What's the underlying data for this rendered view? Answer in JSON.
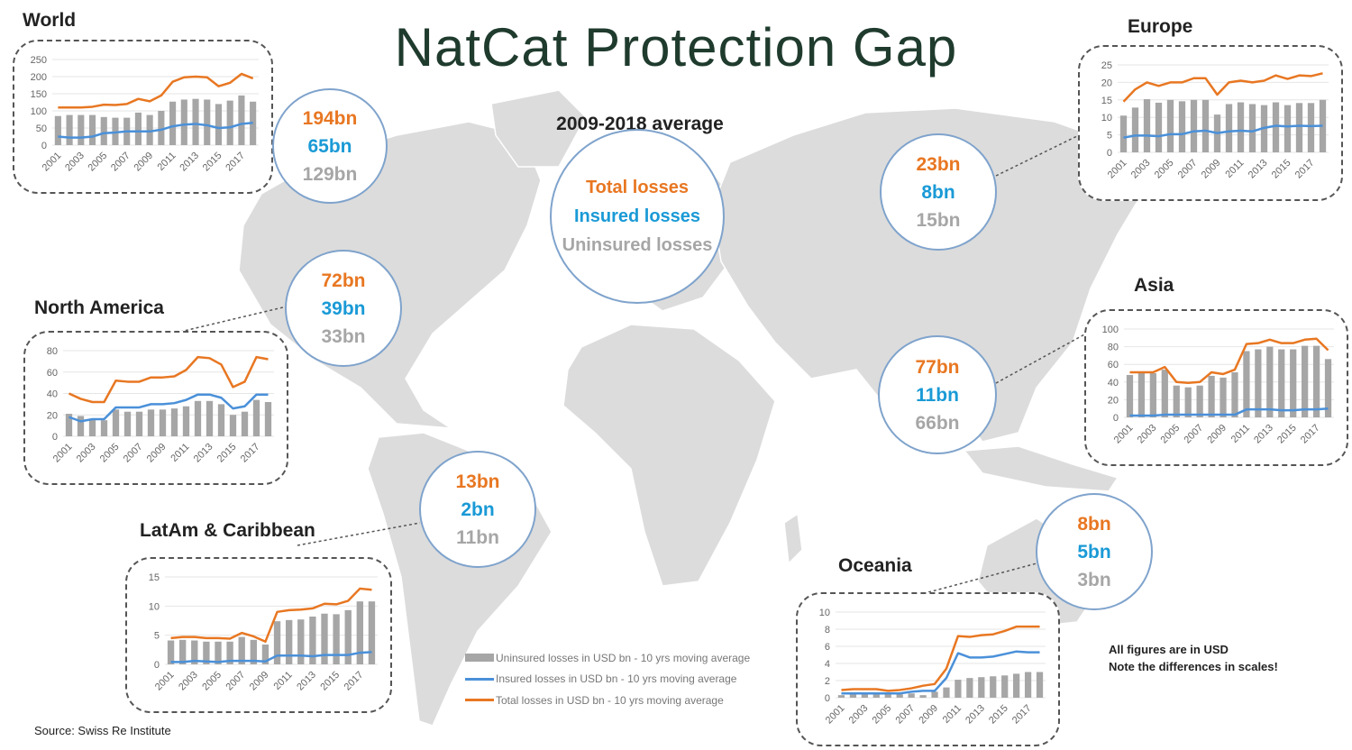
{
  "title": "NatCat Protection Gap",
  "subtitle": "2009-2018 average",
  "key_bubble": {
    "total": "Total losses",
    "insured": "Insured losses",
    "uninsured": "Uninsured losses"
  },
  "colors": {
    "total": "#e87722",
    "insured": "#4a90d9",
    "uninsured": "#a6a6a6",
    "bubble_insured_text": "#1a9ad6",
    "title": "#1f3b2e"
  },
  "legend": [
    {
      "label": "Uninsured losses in USD bn - 10 yrs moving average",
      "type": "bar"
    },
    {
      "label": "Insured losses in USD bn - 10 yrs moving average",
      "type": "line"
    },
    {
      "label": "Total losses in USD bn - 10 yrs moving average",
      "type": "line"
    }
  ],
  "note": {
    "line1": "All figures are in USD",
    "line2": "Note the differences in scales!"
  },
  "source": "Source: Swiss Re Institute",
  "regions": [
    {
      "name": "World",
      "total": "194bn",
      "insured": "65bn",
      "uninsured": "129bn"
    },
    {
      "name": "Europe",
      "total": "23bn",
      "insured": "8bn",
      "uninsured": "15bn"
    },
    {
      "name": "North America",
      "total": "72bn",
      "insured": "39bn",
      "uninsured": "33bn"
    },
    {
      "name": "Asia",
      "total": "77bn",
      "insured": "11bn",
      "uninsured": "66bn"
    },
    {
      "name": "LatAm & Caribbean",
      "total": "13bn",
      "insured": "2bn",
      "uninsured": "11bn"
    },
    {
      "name": "Oceania",
      "total": "8bn",
      "insured": "5bn",
      "uninsured": "3bn"
    }
  ],
  "chart_data": [
    {
      "type": "bar+line",
      "region": "World",
      "x": [
        2001,
        2002,
        2003,
        2004,
        2005,
        2006,
        2007,
        2008,
        2009,
        2010,
        2011,
        2012,
        2013,
        2014,
        2015,
        2016,
        2017,
        2018
      ],
      "x_tick_labels": [
        "2001",
        "2003",
        "2005",
        "2007",
        "2009",
        "2011",
        "2013",
        "2015",
        "2017"
      ],
      "ylim": [
        0,
        250
      ],
      "y_ticks": [
        0,
        50,
        100,
        150,
        200,
        250
      ],
      "grid": true,
      "series": [
        {
          "name": "Uninsured losses in USD bn - 10 yrs moving average",
          "type": "bar",
          "values": [
            85,
            88,
            88,
            88,
            82,
            80,
            80,
            95,
            88,
            100,
            127,
            133,
            135,
            133,
            120,
            130,
            145,
            127
          ]
        },
        {
          "name": "Insured losses in USD bn - 10 yrs moving average",
          "type": "line",
          "values": [
            25,
            22,
            22,
            25,
            35,
            37,
            40,
            40,
            40,
            45,
            55,
            60,
            62,
            58,
            50,
            52,
            62,
            65
          ]
        },
        {
          "name": "Total losses in USD bn - 10 yrs moving average",
          "type": "line",
          "values": [
            110,
            110,
            110,
            112,
            118,
            117,
            120,
            135,
            128,
            145,
            185,
            198,
            200,
            198,
            172,
            182,
            208,
            195
          ]
        }
      ]
    },
    {
      "type": "bar+line",
      "region": "Europe",
      "x": [
        2001,
        2002,
        2003,
        2004,
        2005,
        2006,
        2007,
        2008,
        2009,
        2010,
        2011,
        2012,
        2013,
        2014,
        2015,
        2016,
        2017,
        2018
      ],
      "x_tick_labels": [
        "2001",
        "2003",
        "2005",
        "2007",
        "2009",
        "2011",
        "2013",
        "2015",
        "2017"
      ],
      "ylim": [
        0,
        25
      ],
      "y_ticks": [
        0,
        5,
        10,
        15,
        20,
        25
      ],
      "grid": true,
      "series": [
        {
          "name": "Uninsured losses in USD bn - 10 yrs moving average",
          "type": "bar",
          "values": [
            10.5,
            12.8,
            15.2,
            14.2,
            15,
            14.6,
            15,
            15,
            10.8,
            13.8,
            14.3,
            13.8,
            13.5,
            14.3,
            13.5,
            14.1,
            14.1,
            15
          ]
        },
        {
          "name": "Insured losses in USD bn - 10 yrs moving average",
          "type": "line",
          "values": [
            4.2,
            4.8,
            4.8,
            4.6,
            5.2,
            5.2,
            6,
            6.2,
            5.5,
            6,
            6.2,
            6,
            7,
            7.6,
            7.4,
            7.6,
            7.5,
            7.6
          ]
        },
        {
          "name": "Total losses in USD bn - 10 yrs moving average",
          "type": "line",
          "values": [
            14.5,
            18,
            20,
            19,
            20,
            20,
            21.2,
            21.2,
            16.5,
            20,
            20.5,
            20,
            20.5,
            22,
            21,
            22,
            21.8,
            22.6
          ]
        }
      ]
    },
    {
      "type": "bar+line",
      "region": "North America",
      "x": [
        2001,
        2002,
        2003,
        2004,
        2005,
        2006,
        2007,
        2008,
        2009,
        2010,
        2011,
        2012,
        2013,
        2014,
        2015,
        2016,
        2017,
        2018
      ],
      "x_tick_labels": [
        "2001",
        "2003",
        "2005",
        "2007",
        "2009",
        "2011",
        "2013",
        "2015",
        "2017"
      ],
      "ylim": [
        0,
        80
      ],
      "y_ticks": [
        0,
        20,
        40,
        60,
        80
      ],
      "grid": true,
      "series": [
        {
          "name": "Uninsured losses in USD bn - 10 yrs moving average",
          "type": "bar",
          "values": [
            21,
            19,
            16,
            15,
            25,
            23,
            23,
            25,
            25,
            26,
            28,
            33,
            33,
            30,
            20,
            23,
            34,
            32
          ]
        },
        {
          "name": "Insured losses in USD bn - 10 yrs moving average",
          "type": "line",
          "values": [
            18,
            14,
            16,
            16,
            27,
            27,
            27,
            30,
            30,
            31,
            34,
            39,
            39,
            36,
            26,
            28,
            39,
            39
          ]
        },
        {
          "name": "Total losses in USD bn - 10 yrs moving average",
          "type": "line",
          "values": [
            40,
            35,
            32,
            32,
            52,
            51,
            51,
            55,
            55,
            56,
            62,
            74,
            73,
            67,
            46,
            51,
            74,
            72
          ]
        }
      ]
    },
    {
      "type": "bar+line",
      "region": "Asia",
      "x": [
        2001,
        2002,
        2003,
        2004,
        2005,
        2006,
        2007,
        2008,
        2009,
        2010,
        2011,
        2012,
        2013,
        2014,
        2015,
        2016,
        2017,
        2018
      ],
      "x_tick_labels": [
        "2001",
        "2003",
        "2005",
        "2007",
        "2009",
        "2011",
        "2013",
        "2015",
        "2017"
      ],
      "ylim": [
        0,
        100
      ],
      "y_ticks": [
        0,
        20,
        40,
        60,
        80,
        100
      ],
      "grid": true,
      "series": [
        {
          "name": "Uninsured losses in USD bn - 10 yrs moving average",
          "type": "bar",
          "values": [
            48,
            50,
            50,
            54,
            36,
            34,
            36,
            47,
            45,
            51,
            75,
            77,
            80,
            77,
            77,
            81,
            81,
            66
          ]
        },
        {
          "name": "Insured losses in USD bn - 10 yrs moving average",
          "type": "line",
          "values": [
            2,
            2,
            2,
            3,
            3,
            3,
            3,
            3,
            3,
            3,
            9,
            9,
            9,
            8,
            8,
            9,
            9,
            10
          ]
        },
        {
          "name": "Total losses in USD bn - 10 yrs moving average",
          "type": "line",
          "values": [
            51,
            51,
            51,
            57,
            40,
            39,
            40,
            51,
            49,
            54,
            83,
            84,
            88,
            84,
            84,
            88,
            89,
            76
          ]
        }
      ]
    },
    {
      "type": "bar+line",
      "region": "LatAm & Caribbean",
      "x": [
        2001,
        2002,
        2003,
        2004,
        2005,
        2006,
        2007,
        2008,
        2009,
        2010,
        2011,
        2012,
        2013,
        2014,
        2015,
        2016,
        2017,
        2018
      ],
      "x_tick_labels": [
        "2001",
        "2003",
        "2005",
        "2007",
        "2009",
        "2011",
        "2013",
        "2015",
        "2017"
      ],
      "ylim": [
        0,
        15
      ],
      "y_ticks": [
        0,
        5,
        10,
        15
      ],
      "grid": true,
      "series": [
        {
          "name": "Uninsured losses in USD bn - 10 yrs moving average",
          "type": "bar",
          "values": [
            4.1,
            4.2,
            4.1,
            3.9,
            3.9,
            3.9,
            4.7,
            4.2,
            3.4,
            7.4,
            7.6,
            7.7,
            8.2,
            8.7,
            8.6,
            9.3,
            10.8,
            10.8
          ]
        },
        {
          "name": "Insured losses in USD bn - 10 yrs moving average",
          "type": "line",
          "values": [
            0.4,
            0.4,
            0.6,
            0.5,
            0.4,
            0.6,
            0.6,
            0.6,
            0.5,
            1.5,
            1.5,
            1.5,
            1.4,
            1.6,
            1.6,
            1.6,
            2.0,
            2.1
          ]
        },
        {
          "name": "Total losses in USD bn - 10 yrs moving average",
          "type": "line",
          "values": [
            4.5,
            4.7,
            4.7,
            4.5,
            4.5,
            4.4,
            5.4,
            4.8,
            3.9,
            9,
            9.3,
            9.4,
            9.6,
            10.4,
            10.3,
            10.9,
            13,
            12.8
          ]
        }
      ]
    },
    {
      "type": "bar+line",
      "region": "Oceania",
      "x": [
        2001,
        2002,
        2003,
        2004,
        2005,
        2006,
        2007,
        2008,
        2009,
        2010,
        2011,
        2012,
        2013,
        2014,
        2015,
        2016,
        2017,
        2018
      ],
      "x_tick_labels": [
        "2001",
        "2003",
        "2005",
        "2007",
        "2009",
        "2011",
        "2013",
        "2015",
        "2017"
      ],
      "ylim": [
        0,
        10
      ],
      "y_ticks": [
        0,
        2,
        4,
        6,
        8,
        10
      ],
      "grid": true,
      "series": [
        {
          "name": "Uninsured losses in USD bn - 10 yrs moving average",
          "type": "bar",
          "values": [
            0.3,
            0.4,
            0.4,
            0.4,
            0.4,
            0.4,
            0.5,
            0.3,
            0.7,
            1.2,
            2.1,
            2.3,
            2.4,
            2.5,
            2.6,
            2.8,
            3,
            3
          ]
        },
        {
          "name": "Insured losses in USD bn - 10 yrs moving average",
          "type": "line",
          "values": [
            0.5,
            0.5,
            0.5,
            0.5,
            0.5,
            0.5,
            0.7,
            0.8,
            0.8,
            2.3,
            5.2,
            4.7,
            4.7,
            4.8,
            5.1,
            5.4,
            5.3,
            5.3
          ]
        },
        {
          "name": "Total losses in USD bn - 10 yrs moving average",
          "type": "line",
          "values": [
            0.9,
            1.0,
            1.0,
            1.0,
            0.8,
            0.9,
            1.1,
            1.4,
            1.6,
            3.4,
            7.2,
            7.1,
            7.3,
            7.4,
            7.8,
            8.3,
            8.3,
            8.3
          ]
        }
      ]
    }
  ]
}
